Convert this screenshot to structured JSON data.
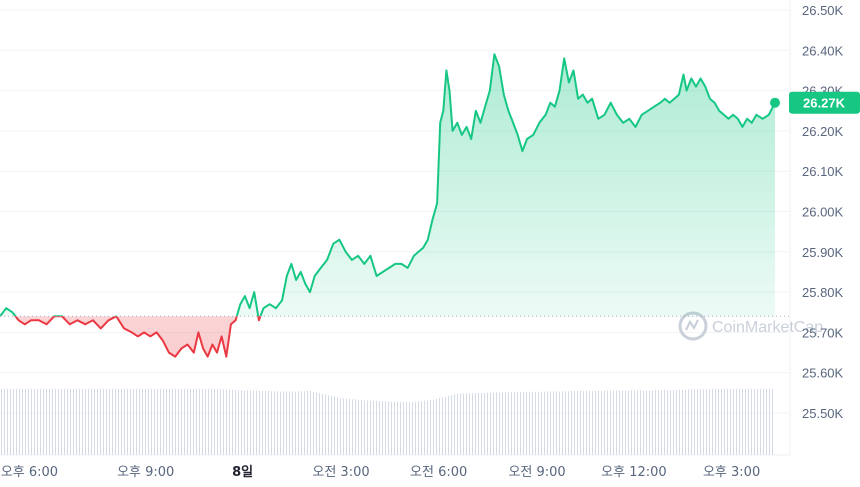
{
  "chart_data": {
    "type": "area",
    "ylim": [
      25.43,
      26.53
    ],
    "y_unit": "K",
    "yticks": [
      "26.50K",
      "26.40K",
      "26.30K",
      "26.20K",
      "26.10K",
      "26.00K",
      "25.90K",
      "25.80K",
      "25.70K",
      "25.60K",
      "25.50K"
    ],
    "ytick_values": [
      26.5,
      26.4,
      26.3,
      26.2,
      26.1,
      26.0,
      25.9,
      25.8,
      25.7,
      25.6,
      25.5
    ],
    "xticks": [
      {
        "label": "오후 6:00",
        "t": 0.038,
        "bold": false
      },
      {
        "label": "오후 9:00",
        "t": 0.188,
        "bold": false
      },
      {
        "label": "8일",
        "t": 0.313,
        "bold": true
      },
      {
        "label": "오전 3:00",
        "t": 0.44,
        "bold": false
      },
      {
        "label": "오전 6:00",
        "t": 0.566,
        "bold": false
      },
      {
        "label": "오전 9:00",
        "t": 0.693,
        "bold": false
      },
      {
        "label": "오후 12:00",
        "t": 0.818,
        "bold": false
      },
      {
        "label": "오후 3:00",
        "t": 0.944,
        "bold": false
      }
    ],
    "baseline": 25.74,
    "current_label": "26.27K",
    "current_value": 26.27,
    "up_color": "#16c784",
    "down_color": "#ea3943",
    "series": [
      {
        "t": 0.0,
        "v": 25.74
      },
      {
        "t": 0.008,
        "v": 25.76
      },
      {
        "t": 0.016,
        "v": 25.75
      },
      {
        "t": 0.024,
        "v": 25.73
      },
      {
        "t": 0.032,
        "v": 25.72
      },
      {
        "t": 0.04,
        "v": 25.73
      },
      {
        "t": 0.05,
        "v": 25.73
      },
      {
        "t": 0.06,
        "v": 25.72
      },
      {
        "t": 0.07,
        "v": 25.74
      },
      {
        "t": 0.08,
        "v": 25.74
      },
      {
        "t": 0.09,
        "v": 25.72
      },
      {
        "t": 0.1,
        "v": 25.73
      },
      {
        "t": 0.11,
        "v": 25.72
      },
      {
        "t": 0.12,
        "v": 25.73
      },
      {
        "t": 0.13,
        "v": 25.71
      },
      {
        "t": 0.14,
        "v": 25.73
      },
      {
        "t": 0.15,
        "v": 25.74
      },
      {
        "t": 0.16,
        "v": 25.71
      },
      {
        "t": 0.17,
        "v": 25.7
      },
      {
        "t": 0.178,
        "v": 25.69
      },
      {
        "t": 0.186,
        "v": 25.7
      },
      {
        "t": 0.194,
        "v": 25.69
      },
      {
        "t": 0.202,
        "v": 25.7
      },
      {
        "t": 0.21,
        "v": 25.68
      },
      {
        "t": 0.218,
        "v": 25.65
      },
      {
        "t": 0.226,
        "v": 25.64
      },
      {
        "t": 0.234,
        "v": 25.66
      },
      {
        "t": 0.242,
        "v": 25.67
      },
      {
        "t": 0.25,
        "v": 25.65
      },
      {
        "t": 0.256,
        "v": 25.7
      },
      {
        "t": 0.262,
        "v": 25.66
      },
      {
        "t": 0.268,
        "v": 25.64
      },
      {
        "t": 0.274,
        "v": 25.67
      },
      {
        "t": 0.28,
        "v": 25.65
      },
      {
        "t": 0.286,
        "v": 25.69
      },
      {
        "t": 0.292,
        "v": 25.64
      },
      {
        "t": 0.298,
        "v": 25.72
      },
      {
        "t": 0.304,
        "v": 25.73
      },
      {
        "t": 0.31,
        "v": 25.77
      },
      {
        "t": 0.316,
        "v": 25.79
      },
      {
        "t": 0.322,
        "v": 25.76
      },
      {
        "t": 0.328,
        "v": 25.8
      },
      {
        "t": 0.334,
        "v": 25.73
      },
      {
        "t": 0.34,
        "v": 25.76
      },
      {
        "t": 0.348,
        "v": 25.77
      },
      {
        "t": 0.356,
        "v": 25.76
      },
      {
        "t": 0.364,
        "v": 25.78
      },
      {
        "t": 0.37,
        "v": 25.84
      },
      {
        "t": 0.376,
        "v": 25.87
      },
      {
        "t": 0.382,
        "v": 25.83
      },
      {
        "t": 0.388,
        "v": 25.85
      },
      {
        "t": 0.394,
        "v": 25.82
      },
      {
        "t": 0.4,
        "v": 25.8
      },
      {
        "t": 0.406,
        "v": 25.84
      },
      {
        "t": 0.414,
        "v": 25.86
      },
      {
        "t": 0.422,
        "v": 25.88
      },
      {
        "t": 0.43,
        "v": 25.92
      },
      {
        "t": 0.438,
        "v": 25.93
      },
      {
        "t": 0.446,
        "v": 25.9
      },
      {
        "t": 0.454,
        "v": 25.88
      },
      {
        "t": 0.462,
        "v": 25.89
      },
      {
        "t": 0.47,
        "v": 25.87
      },
      {
        "t": 0.478,
        "v": 25.89
      },
      {
        "t": 0.486,
        "v": 25.84
      },
      {
        "t": 0.494,
        "v": 25.85
      },
      {
        "t": 0.502,
        "v": 25.86
      },
      {
        "t": 0.51,
        "v": 25.87
      },
      {
        "t": 0.518,
        "v": 25.87
      },
      {
        "t": 0.526,
        "v": 25.86
      },
      {
        "t": 0.534,
        "v": 25.89
      },
      {
        "t": 0.54,
        "v": 25.9
      },
      {
        "t": 0.546,
        "v": 25.91
      },
      {
        "t": 0.552,
        "v": 25.93
      },
      {
        "t": 0.558,
        "v": 25.98
      },
      {
        "t": 0.564,
        "v": 26.02
      },
      {
        "t": 0.568,
        "v": 26.22
      },
      {
        "t": 0.572,
        "v": 26.25
      },
      {
        "t": 0.576,
        "v": 26.35
      },
      {
        "t": 0.58,
        "v": 26.3
      },
      {
        "t": 0.584,
        "v": 26.2
      },
      {
        "t": 0.59,
        "v": 26.22
      },
      {
        "t": 0.596,
        "v": 26.19
      },
      {
        "t": 0.602,
        "v": 26.21
      },
      {
        "t": 0.608,
        "v": 26.18
      },
      {
        "t": 0.614,
        "v": 26.25
      },
      {
        "t": 0.62,
        "v": 26.22
      },
      {
        "t": 0.626,
        "v": 26.26
      },
      {
        "t": 0.632,
        "v": 26.3
      },
      {
        "t": 0.638,
        "v": 26.39
      },
      {
        "t": 0.644,
        "v": 26.36
      },
      {
        "t": 0.65,
        "v": 26.29
      },
      {
        "t": 0.656,
        "v": 26.25
      },
      {
        "t": 0.662,
        "v": 26.22
      },
      {
        "t": 0.668,
        "v": 26.19
      },
      {
        "t": 0.674,
        "v": 26.15
      },
      {
        "t": 0.68,
        "v": 26.18
      },
      {
        "t": 0.688,
        "v": 26.19
      },
      {
        "t": 0.696,
        "v": 26.22
      },
      {
        "t": 0.704,
        "v": 26.24
      },
      {
        "t": 0.71,
        "v": 26.27
      },
      {
        "t": 0.716,
        "v": 26.26
      },
      {
        "t": 0.722,
        "v": 26.3
      },
      {
        "t": 0.728,
        "v": 26.38
      },
      {
        "t": 0.734,
        "v": 26.32
      },
      {
        "t": 0.74,
        "v": 26.35
      },
      {
        "t": 0.746,
        "v": 26.28
      },
      {
        "t": 0.752,
        "v": 26.29
      },
      {
        "t": 0.758,
        "v": 26.27
      },
      {
        "t": 0.764,
        "v": 26.28
      },
      {
        "t": 0.772,
        "v": 26.23
      },
      {
        "t": 0.78,
        "v": 26.24
      },
      {
        "t": 0.788,
        "v": 26.27
      },
      {
        "t": 0.796,
        "v": 26.24
      },
      {
        "t": 0.804,
        "v": 26.22
      },
      {
        "t": 0.812,
        "v": 26.23
      },
      {
        "t": 0.82,
        "v": 26.21
      },
      {
        "t": 0.828,
        "v": 26.24
      },
      {
        "t": 0.836,
        "v": 26.25
      },
      {
        "t": 0.844,
        "v": 26.26
      },
      {
        "t": 0.852,
        "v": 26.27
      },
      {
        "t": 0.858,
        "v": 26.28
      },
      {
        "t": 0.864,
        "v": 26.27
      },
      {
        "t": 0.87,
        "v": 26.28
      },
      {
        "t": 0.876,
        "v": 26.29
      },
      {
        "t": 0.882,
        "v": 26.34
      },
      {
        "t": 0.886,
        "v": 26.3
      },
      {
        "t": 0.892,
        "v": 26.33
      },
      {
        "t": 0.898,
        "v": 26.31
      },
      {
        "t": 0.904,
        "v": 26.33
      },
      {
        "t": 0.91,
        "v": 26.31
      },
      {
        "t": 0.916,
        "v": 26.28
      },
      {
        "t": 0.922,
        "v": 26.27
      },
      {
        "t": 0.928,
        "v": 26.25
      },
      {
        "t": 0.934,
        "v": 26.24
      },
      {
        "t": 0.94,
        "v": 26.23
      },
      {
        "t": 0.946,
        "v": 26.24
      },
      {
        "t": 0.952,
        "v": 26.23
      },
      {
        "t": 0.958,
        "v": 26.21
      },
      {
        "t": 0.964,
        "v": 26.23
      },
      {
        "t": 0.97,
        "v": 26.22
      },
      {
        "t": 0.976,
        "v": 26.24
      },
      {
        "t": 0.984,
        "v": 26.23
      },
      {
        "t": 0.992,
        "v": 26.24
      },
      {
        "t": 1.0,
        "v": 26.27
      }
    ],
    "volume_profile": [
      {
        "t": 0.0,
        "h": 1.0
      },
      {
        "t": 0.28,
        "h": 1.0
      },
      {
        "t": 0.31,
        "h": 0.98
      },
      {
        "t": 0.37,
        "h": 0.96
      },
      {
        "t": 0.4,
        "h": 0.97
      },
      {
        "t": 0.44,
        "h": 0.86
      },
      {
        "t": 0.48,
        "h": 0.82
      },
      {
        "t": 0.53,
        "h": 0.8
      },
      {
        "t": 0.56,
        "h": 0.84
      },
      {
        "t": 0.59,
        "h": 0.93
      },
      {
        "t": 0.65,
        "h": 0.95
      },
      {
        "t": 0.75,
        "h": 0.97
      },
      {
        "t": 0.85,
        "h": 0.98
      },
      {
        "t": 0.92,
        "h": 1.0
      },
      {
        "t": 1.0,
        "h": 1.0
      }
    ]
  },
  "watermark": {
    "text": "CoinMarketCap"
  }
}
